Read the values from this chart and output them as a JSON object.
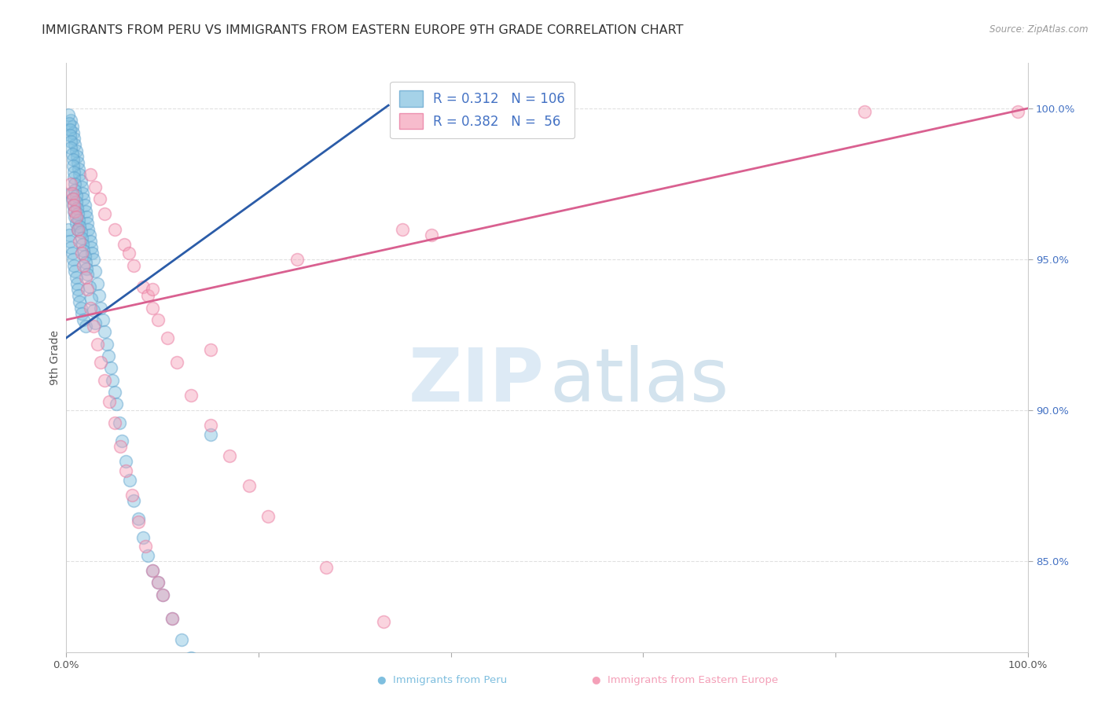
{
  "title": "IMMIGRANTS FROM PERU VS IMMIGRANTS FROM EASTERN EUROPE 9TH GRADE CORRELATION CHART",
  "source": "Source: ZipAtlas.com",
  "ylabel": "9th Grade",
  "xlim": [
    0.0,
    1.0
  ],
  "ylim": [
    0.82,
    1.015
  ],
  "ytick_labels": [
    "85.0%",
    "90.0%",
    "95.0%",
    "100.0%"
  ],
  "ytick_values": [
    0.85,
    0.9,
    0.95,
    1.0
  ],
  "xtick_values": [
    0.0,
    0.2,
    0.4,
    0.6,
    0.8,
    1.0
  ],
  "xtick_labels": [
    "0.0%",
    "",
    "",
    "",
    "",
    "100.0%"
  ],
  "blue_color": "#7fbfdf",
  "pink_color": "#f4a0b8",
  "blue_line_color": "#2b5ca8",
  "pink_line_color": "#d96090",
  "blue_marker_edge": "#5ba0cc",
  "pink_marker_edge": "#e87099",
  "blue_points_x": [
    0.002,
    0.003,
    0.004,
    0.005,
    0.005,
    0.005,
    0.006,
    0.006,
    0.006,
    0.007,
    0.007,
    0.007,
    0.008,
    0.008,
    0.008,
    0.009,
    0.009,
    0.009,
    0.01,
    0.01,
    0.01,
    0.011,
    0.011,
    0.012,
    0.012,
    0.012,
    0.013,
    0.013,
    0.014,
    0.014,
    0.015,
    0.015,
    0.016,
    0.016,
    0.017,
    0.018,
    0.018,
    0.019,
    0.02,
    0.02,
    0.021,
    0.022,
    0.023,
    0.024,
    0.025,
    0.026,
    0.027,
    0.028,
    0.03,
    0.032,
    0.034,
    0.036,
    0.038,
    0.04,
    0.042,
    0.044,
    0.046,
    0.048,
    0.05,
    0.052,
    0.055,
    0.058,
    0.062,
    0.066,
    0.07,
    0.075,
    0.08,
    0.085,
    0.09,
    0.095,
    0.1,
    0.11,
    0.12,
    0.13,
    0.002,
    0.003,
    0.004,
    0.004,
    0.005,
    0.005,
    0.006,
    0.007,
    0.007,
    0.008,
    0.008,
    0.009,
    0.009,
    0.01,
    0.01,
    0.011,
    0.012,
    0.013,
    0.014,
    0.015,
    0.016,
    0.017,
    0.018,
    0.019,
    0.02,
    0.021,
    0.022,
    0.024,
    0.026,
    0.028,
    0.03,
    0.15
  ],
  "blue_points_y": [
    0.96,
    0.958,
    0.956,
    0.996,
    0.972,
    0.954,
    0.994,
    0.97,
    0.952,
    0.992,
    0.968,
    0.95,
    0.99,
    0.966,
    0.948,
    0.988,
    0.964,
    0.946,
    0.986,
    0.962,
    0.944,
    0.984,
    0.942,
    0.982,
    0.96,
    0.94,
    0.98,
    0.938,
    0.978,
    0.936,
    0.976,
    0.934,
    0.974,
    0.932,
    0.972,
    0.97,
    0.93,
    0.968,
    0.966,
    0.928,
    0.964,
    0.962,
    0.96,
    0.958,
    0.956,
    0.954,
    0.952,
    0.95,
    0.946,
    0.942,
    0.938,
    0.934,
    0.93,
    0.926,
    0.922,
    0.918,
    0.914,
    0.91,
    0.906,
    0.902,
    0.896,
    0.89,
    0.883,
    0.877,
    0.87,
    0.864,
    0.858,
    0.852,
    0.847,
    0.843,
    0.839,
    0.831,
    0.824,
    0.818,
    0.998,
    0.995,
    0.993,
    0.991,
    0.989,
    0.987,
    0.985,
    0.983,
    0.981,
    0.979,
    0.977,
    0.975,
    0.973,
    0.971,
    0.969,
    0.967,
    0.965,
    0.963,
    0.961,
    0.959,
    0.957,
    0.955,
    0.953,
    0.951,
    0.949,
    0.947,
    0.945,
    0.941,
    0.937,
    0.933,
    0.929,
    0.892
  ],
  "pink_points_x": [
    0.005,
    0.006,
    0.007,
    0.008,
    0.009,
    0.01,
    0.012,
    0.014,
    0.016,
    0.018,
    0.02,
    0.022,
    0.025,
    0.028,
    0.032,
    0.036,
    0.04,
    0.045,
    0.05,
    0.056,
    0.062,
    0.068,
    0.075,
    0.082,
    0.09,
    0.095,
    0.1,
    0.11,
    0.025,
    0.03,
    0.035,
    0.04,
    0.06,
    0.065,
    0.07,
    0.08,
    0.085,
    0.09,
    0.095,
    0.105,
    0.115,
    0.13,
    0.15,
    0.17,
    0.19,
    0.21,
    0.27,
    0.33,
    0.05,
    0.09,
    0.15,
    0.35,
    0.83,
    0.99,
    0.38,
    0.24
  ],
  "pink_points_y": [
    0.975,
    0.972,
    0.97,
    0.968,
    0.966,
    0.964,
    0.96,
    0.956,
    0.952,
    0.948,
    0.944,
    0.94,
    0.934,
    0.928,
    0.922,
    0.916,
    0.91,
    0.903,
    0.896,
    0.888,
    0.88,
    0.872,
    0.863,
    0.855,
    0.847,
    0.843,
    0.839,
    0.831,
    0.978,
    0.974,
    0.97,
    0.965,
    0.955,
    0.952,
    0.948,
    0.941,
    0.938,
    0.934,
    0.93,
    0.924,
    0.916,
    0.905,
    0.895,
    0.885,
    0.875,
    0.865,
    0.848,
    0.83,
    0.96,
    0.94,
    0.92,
    0.96,
    0.999,
    0.999,
    0.958,
    0.95
  ],
  "blue_trend_x": [
    0.0,
    0.335
  ],
  "blue_trend_y": [
    0.924,
    1.001
  ],
  "pink_trend_x": [
    0.0,
    1.0
  ],
  "pink_trend_y": [
    0.93,
    1.0
  ],
  "background_color": "#ffffff",
  "grid_color": "#e0e0e0",
  "title_color": "#333333",
  "tick_color_y": "#4472C4",
  "tick_color_x": "#555555",
  "title_fontsize": 11.5,
  "axis_label_fontsize": 10,
  "tick_fontsize": 9.5,
  "legend_fontsize": 12,
  "watermark_zip_color": "#cce0f0",
  "watermark_atlas_color": "#b0cce0"
}
